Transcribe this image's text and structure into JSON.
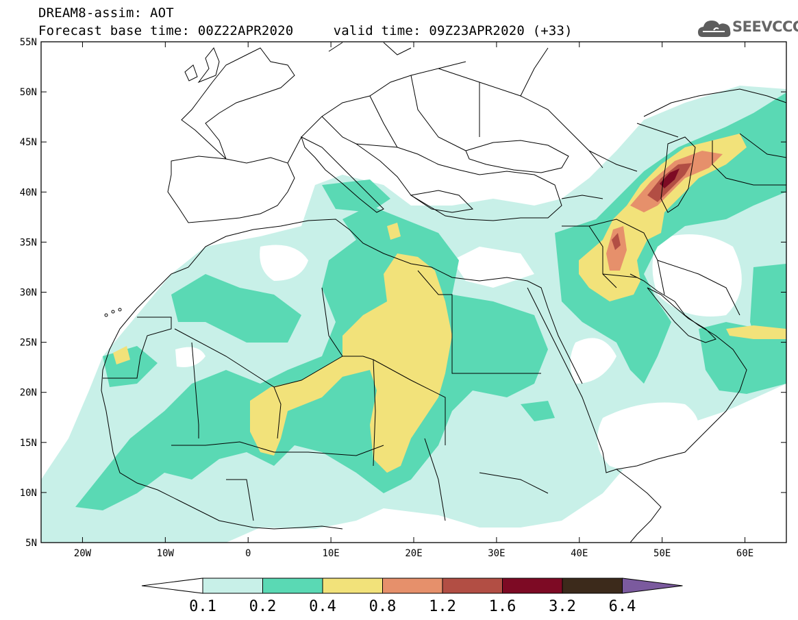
{
  "header": {
    "line1": "DREAM8-assim: AOT",
    "base_label": "Forecast base time: 00Z22APR2020",
    "valid_label": "valid time: 09Z23APR2020 (+33)"
  },
  "logo": {
    "text": "SEEVCCC",
    "icon": "cloud-icon"
  },
  "map": {
    "region": "Northern Africa, Europe, Middle East",
    "lon_range": [
      -25,
      65
    ],
    "lat_range": [
      5,
      55
    ],
    "lon_ticks": [
      "20W",
      "10W",
      "0",
      "10E",
      "20E",
      "30E",
      "40E",
      "50E",
      "60E"
    ],
    "lat_ticks": [
      "55N",
      "50N",
      "45N",
      "40N",
      "35N",
      "30N",
      "25N",
      "20N",
      "15N",
      "10N",
      "5N"
    ]
  },
  "colorbar": {
    "labels": [
      "0.1",
      "0.2",
      "0.4",
      "0.8",
      "1.2",
      "1.6",
      "3.2",
      "6.4"
    ],
    "colors": [
      "#c8f0e8",
      "#5ad9b4",
      "#f2e27a",
      "#e6906b",
      "#b24e44",
      "#7d0a24",
      "#3c2a1b"
    ],
    "under_color": "#ffffff",
    "over_color": "#7b5a9e"
  },
  "palette": {
    "aot_01_02": "#c8f0e8",
    "aot_02_04": "#5ad9b4",
    "aot_04_08": "#f2e27a",
    "aot_08_12": "#e6906b",
    "aot_12_16": "#b24e44",
    "aot_16_32": "#7d0a24"
  }
}
